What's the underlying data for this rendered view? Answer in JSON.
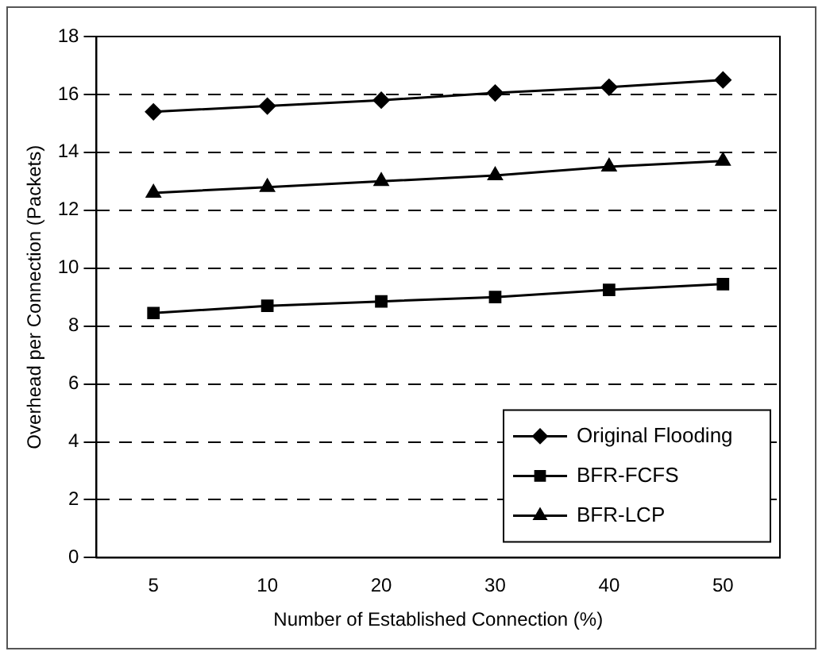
{
  "chart_data": {
    "type": "line",
    "xlabel": "Number of Established Connection (%)",
    "ylabel": "Overhead per Connection (Packets)",
    "categories": [
      "5",
      "10",
      "20",
      "30",
      "40",
      "50"
    ],
    "series": [
      {
        "name": "Original Flooding",
        "color": "#000000",
        "marker": "diamond",
        "values": [
          15.4,
          15.6,
          15.8,
          16.05,
          16.25,
          16.5
        ]
      },
      {
        "name": "BFR-FCFS",
        "color": "#000000",
        "marker": "square",
        "values": [
          8.45,
          8.7,
          8.85,
          9.0,
          9.25,
          9.45
        ]
      },
      {
        "name": "BFR-LCP",
        "color": "#000000",
        "marker": "triangle",
        "values": [
          12.6,
          12.8,
          13.0,
          13.2,
          13.5,
          13.7
        ]
      }
    ],
    "ylim": [
      0,
      18
    ],
    "yticks": [
      0,
      2,
      4,
      6,
      8,
      10,
      12,
      14,
      16,
      18
    ],
    "grid": "y",
    "legend": "bottom right",
    "line_style": "solid"
  }
}
